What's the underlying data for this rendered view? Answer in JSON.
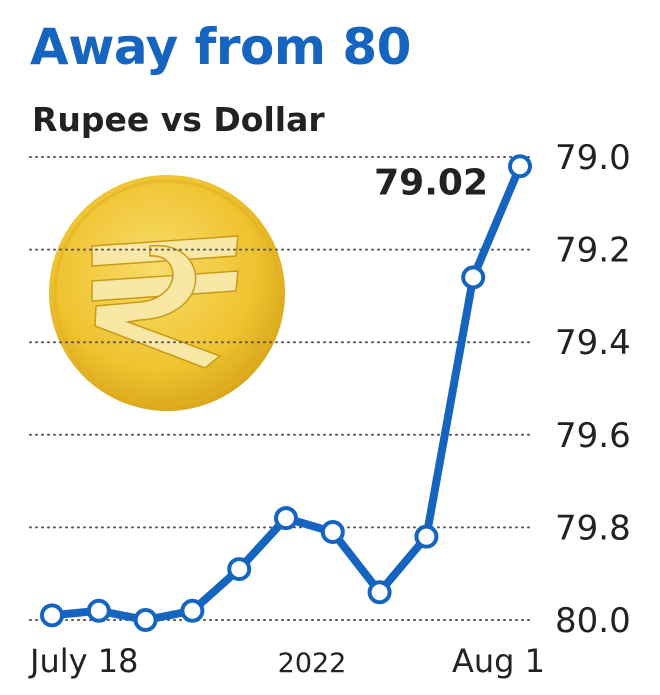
{
  "title": "Away from 80",
  "subtitle": "Rupee vs Dollar",
  "colors": {
    "title": "#1565c0",
    "line": "#1565c0",
    "coin": "#f0c030",
    "coin_symbol": "#f9e7a5"
  },
  "icons": {
    "coin": "rupee-coin-icon"
  },
  "chart_data": {
    "type": "line",
    "title": "Away from 80",
    "subtitle": "Rupee vs Dollar",
    "y_axis_side": "right",
    "y_inverted": true,
    "y_ticks": [
      "79.0",
      "79.2",
      "79.4",
      "79.6",
      "79.8",
      "80.0"
    ],
    "ylim": [
      79.0,
      80.0
    ],
    "x_labels": [
      "July 18",
      "2022",
      "Aug 1"
    ],
    "grid": "horizontal dotted",
    "series": [
      {
        "values": [
          79.99,
          79.98,
          80.0,
          79.98,
          79.89,
          79.78,
          79.81,
          79.94,
          79.82,
          79.26,
          79.02
        ]
      }
    ],
    "annotations": [
      {
        "point_index": 10,
        "text": "79.02"
      }
    ]
  }
}
